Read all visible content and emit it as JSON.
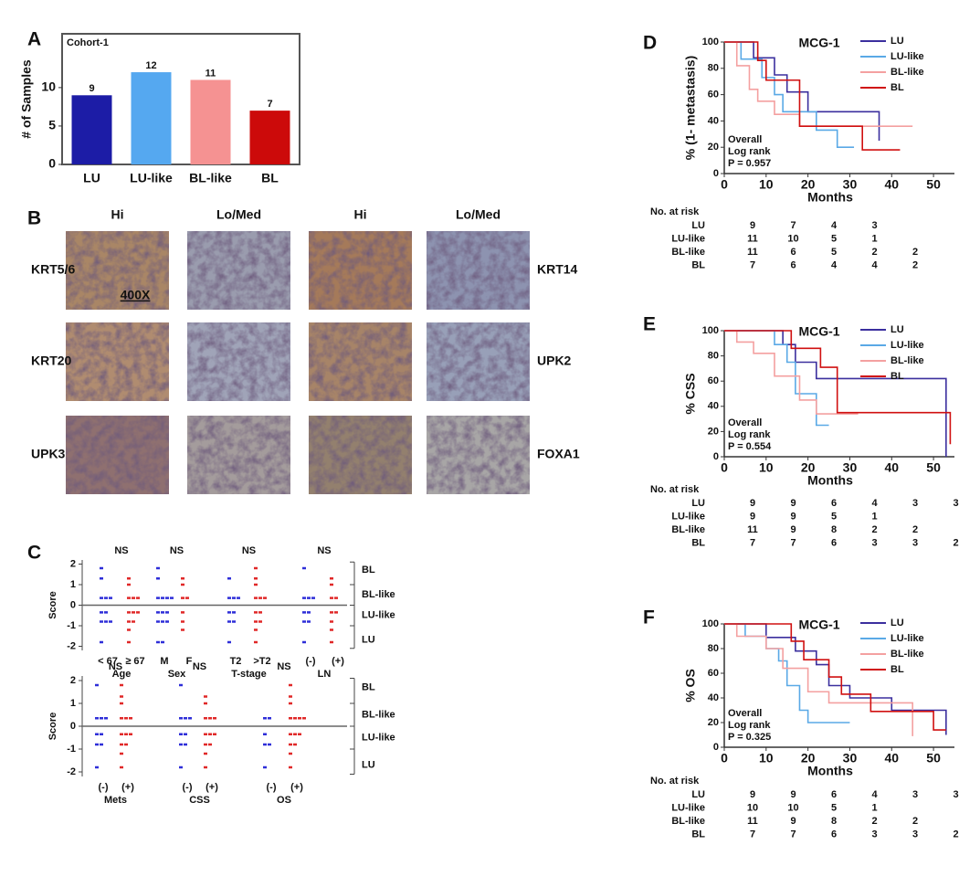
{
  "chart_data": [
    {
      "type": "bar",
      "panel": "A",
      "title": "Cohort-1",
      "ylabel": "# of Samples",
      "categories": [
        "LU",
        "LU-like",
        "BL-like",
        "BL"
      ],
      "values": [
        9,
        12,
        11,
        7
      ],
      "colors": [
        "#1c1ca6",
        "#55a8f0",
        "#f59292",
        "#cc0a0a"
      ],
      "ylim": [
        0,
        17
      ],
      "yticks": [
        0,
        5,
        10
      ]
    },
    {
      "type": "strip",
      "panel": "C",
      "ylabel": "Score",
      "ylim": [
        -2.2,
        2.2
      ],
      "yticks": [
        -2,
        -1,
        0,
        1,
        2
      ],
      "bracket": [
        "BL",
        "BL-like",
        "LU-like",
        "LU"
      ],
      "groups": [
        {
          "name": "Age",
          "annotation": "NS",
          "strips": [
            {
              "label": "< 67",
              "color": "#2e2ed8",
              "values": [
                1.8,
                1.3,
                0.35,
                0.35,
                0.35,
                -0.35,
                -0.35,
                -0.8,
                -0.8,
                -0.8,
                -1.8
              ]
            },
            {
              "label": "≥ 67",
              "color": "#e02828",
              "values": [
                1.3,
                1.0,
                0.35,
                0.35,
                0.35,
                -0.35,
                -0.35,
                -0.35,
                -0.8,
                -0.8,
                -1.2,
                -1.8
              ]
            }
          ]
        },
        {
          "name": "Sex",
          "annotation": "NS",
          "strips": [
            {
              "label": "M",
              "color": "#2e2ed8",
              "values": [
                1.8,
                1.3,
                0.35,
                0.35,
                0.35,
                0.35,
                -0.35,
                -0.35,
                -0.35,
                -0.8,
                -0.8,
                -0.8,
                -1.8,
                -1.8
              ]
            },
            {
              "label": "F",
              "color": "#e02828",
              "values": [
                1.3,
                1.0,
                0.35,
                0.35,
                -0.35,
                -0.8,
                -1.2
              ]
            }
          ]
        },
        {
          "name": "T-stage",
          "annotation": "NS",
          "strips": [
            {
              "label": "T2",
              "color": "#2e2ed8",
              "values": [
                1.3,
                0.35,
                0.35,
                0.35,
                -0.35,
                -0.35,
                -0.8,
                -0.8,
                -1.8
              ]
            },
            {
              "label": ">T2",
              "color": "#e02828",
              "values": [
                1.8,
                1.3,
                1.0,
                0.35,
                0.35,
                0.35,
                -0.35,
                -0.35,
                -0.8,
                -0.8,
                -1.2,
                -1.8
              ]
            }
          ]
        },
        {
          "name": "LN",
          "annotation": "NS",
          "strips": [
            {
              "label": "(-)",
              "color": "#2e2ed8",
              "values": [
                1.8,
                0.35,
                0.35,
                0.35,
                -0.35,
                -0.35,
                -0.8,
                -0.8,
                -1.8
              ]
            },
            {
              "label": "(+)",
              "color": "#e02828",
              "values": [
                1.3,
                1.0,
                0.35,
                0.35,
                -0.35,
                -0.35,
                -0.8,
                -1.2,
                -1.8
              ]
            }
          ]
        }
      ]
    },
    {
      "type": "strip",
      "ylabel": "Score",
      "ylim": [
        -2.2,
        2.2
      ],
      "yticks": [
        -2,
        -1,
        0,
        1,
        2
      ],
      "bracket": [
        "BL",
        "BL-like",
        "LU-like",
        "LU"
      ],
      "groups": [
        {
          "name": "Mets",
          "annotation": "NS",
          "strips": [
            {
              "label": "(-)",
              "color": "#2e2ed8",
              "values": [
                1.8,
                0.35,
                0.35,
                0.35,
                -0.35,
                -0.35,
                -0.8,
                -0.8,
                -1.8
              ]
            },
            {
              "label": "(+)",
              "color": "#e02828",
              "values": [
                1.8,
                1.3,
                1.0,
                0.35,
                0.35,
                0.35,
                -0.35,
                -0.35,
                -0.35,
                -0.8,
                -0.8,
                -1.2,
                -1.8
              ]
            }
          ]
        },
        {
          "name": "CSS",
          "annotation": "NS",
          "strips": [
            {
              "label": "(-)",
              "color": "#2e2ed8",
              "values": [
                1.8,
                0.35,
                0.35,
                0.35,
                -0.35,
                -0.35,
                -0.8,
                -0.8,
                -1.8
              ]
            },
            {
              "label": "(+)",
              "color": "#e02828",
              "values": [
                1.3,
                1.0,
                0.35,
                0.35,
                0.35,
                -0.35,
                -0.35,
                -0.35,
                -0.8,
                -0.8,
                -1.2,
                -1.8
              ]
            }
          ]
        },
        {
          "name": "OS",
          "annotation": "NS",
          "strips": [
            {
              "label": "(-)",
              "color": "#2e2ed8",
              "values": [
                0.35,
                0.35,
                -0.35,
                -0.8,
                -0.8,
                -1.8
              ]
            },
            {
              "label": "(+)",
              "color": "#e02828",
              "values": [
                1.8,
                1.3,
                1.0,
                0.35,
                0.35,
                0.35,
                0.35,
                -0.35,
                -0.35,
                -0.35,
                -0.8,
                -0.8,
                -1.2,
                -1.8
              ]
            }
          ]
        }
      ]
    },
    {
      "type": "km",
      "panel": "D",
      "title": "MCG-1",
      "ylabel": "% (1- metastasis)",
      "xlabel": "Months",
      "annotation": [
        "Overall",
        "Log rank",
        "P = 0.957"
      ],
      "xlim": [
        0,
        55
      ],
      "ylim": [
        0,
        100
      ],
      "xticks": [
        0,
        10,
        20,
        30,
        40,
        50
      ],
      "yticks": [
        0,
        20,
        40,
        60,
        80,
        100
      ],
      "series": [
        {
          "name": "LU",
          "color": "#3b2f9e",
          "x": [
            0,
            7,
            7,
            12,
            12,
            15,
            15,
            20,
            20,
            37,
            37
          ],
          "values": [
            100,
            100,
            88,
            88,
            75,
            75,
            62,
            62,
            47,
            47,
            25
          ]
        },
        {
          "name": "LU-like",
          "color": "#5aa9e6",
          "x": [
            0,
            4,
            4,
            9,
            9,
            12,
            12,
            14,
            14,
            22,
            22,
            27,
            27,
            31
          ],
          "values": [
            100,
            100,
            87,
            87,
            73,
            73,
            60,
            60,
            47,
            47,
            33,
            33,
            20,
            20
          ]
        },
        {
          "name": "BL-like",
          "color": "#f4a0a0",
          "x": [
            0,
            3,
            3,
            6,
            6,
            8,
            8,
            12,
            12,
            18,
            18,
            45
          ],
          "values": [
            100,
            100,
            82,
            82,
            64,
            64,
            55,
            55,
            45,
            45,
            36,
            36
          ]
        },
        {
          "name": "BL",
          "color": "#d01010",
          "x": [
            0,
            8,
            8,
            10,
            10,
            18,
            18,
            33,
            33,
            42
          ],
          "values": [
            100,
            100,
            86,
            86,
            71,
            71,
            36,
            36,
            18,
            18
          ]
        }
      ],
      "risk_table": {
        "title": "No. at risk",
        "rows": [
          {
            "name": "LU",
            "counts": [
              9,
              7,
              4,
              3
            ]
          },
          {
            "name": "LU-like",
            "counts": [
              11,
              10,
              5,
              1
            ]
          },
          {
            "name": "BL-like",
            "counts": [
              11,
              6,
              5,
              2,
              2
            ]
          },
          {
            "name": "BL",
            "counts": [
              7,
              6,
              4,
              4,
              2
            ]
          }
        ]
      }
    },
    {
      "type": "km",
      "panel": "E",
      "title": "MCG-1",
      "ylabel": "% CSS",
      "xlabel": "Months",
      "annotation": [
        "Overall",
        "Log rank",
        "P = 0.554"
      ],
      "xlim": [
        0,
        55
      ],
      "ylim": [
        0,
        100
      ],
      "xticks": [
        0,
        10,
        20,
        30,
        40,
        50
      ],
      "yticks": [
        0,
        20,
        40,
        60,
        80,
        100
      ],
      "series": [
        {
          "name": "LU",
          "color": "#3b2f9e",
          "x": [
            0,
            14,
            14,
            17,
            17,
            22,
            22,
            53,
            53
          ],
          "values": [
            100,
            100,
            89,
            89,
            75,
            75,
            62,
            62,
            0
          ]
        },
        {
          "name": "LU-like",
          "color": "#5aa9e6",
          "x": [
            0,
            12,
            12,
            15,
            15,
            17,
            17,
            22,
            22,
            25
          ],
          "values": [
            100,
            100,
            89,
            89,
            75,
            75,
            50,
            50,
            25,
            25
          ]
        },
        {
          "name": "BL-like",
          "color": "#f4a0a0",
          "x": [
            0,
            3,
            3,
            7,
            7,
            12,
            12,
            18,
            18,
            22,
            22,
            32
          ],
          "values": [
            100,
            100,
            91,
            91,
            82,
            82,
            64,
            64,
            45,
            45,
            34,
            34
          ]
        },
        {
          "name": "BL",
          "color": "#d01010",
          "x": [
            0,
            16,
            16,
            23,
            23,
            27,
            27,
            54,
            54
          ],
          "values": [
            100,
            100,
            86,
            86,
            71,
            71,
            35,
            35,
            10
          ]
        }
      ],
      "risk_table": {
        "title": "No. at risk",
        "rows": [
          {
            "name": "LU",
            "counts": [
              9,
              9,
              6,
              4,
              3,
              3
            ]
          },
          {
            "name": "LU-like",
            "counts": [
              9,
              9,
              5,
              1
            ]
          },
          {
            "name": "BL-like",
            "counts": [
              11,
              9,
              8,
              2,
              2
            ]
          },
          {
            "name": "BL",
            "counts": [
              7,
              7,
              6,
              3,
              3,
              2
            ]
          }
        ]
      }
    },
    {
      "type": "km",
      "panel": "F",
      "title": "MCG-1",
      "ylabel": "% OS",
      "xlabel": "Months",
      "annotation": [
        "Overall",
        "Log rank",
        "P = 0.325"
      ],
      "xlim": [
        0,
        55
      ],
      "ylim": [
        0,
        100
      ],
      "xticks": [
        0,
        10,
        20,
        30,
        40,
        50
      ],
      "yticks": [
        0,
        20,
        40,
        60,
        80,
        100
      ],
      "series": [
        {
          "name": "LU",
          "color": "#3b2f9e",
          "x": [
            0,
            10,
            10,
            17,
            17,
            22,
            22,
            25,
            25,
            30,
            30,
            40,
            40,
            53,
            53
          ],
          "values": [
            100,
            100,
            89,
            89,
            78,
            78,
            67,
            67,
            50,
            50,
            40,
            40,
            30,
            30,
            10
          ]
        },
        {
          "name": "LU-like",
          "color": "#5aa9e6",
          "x": [
            0,
            5,
            5,
            10,
            10,
            13,
            13,
            15,
            15,
            18,
            18,
            20,
            20,
            30
          ],
          "values": [
            100,
            100,
            90,
            90,
            80,
            80,
            70,
            70,
            50,
            50,
            30,
            30,
            20,
            20
          ]
        },
        {
          "name": "BL-like",
          "color": "#f4a0a0",
          "x": [
            0,
            3,
            3,
            10,
            10,
            14,
            14,
            20,
            20,
            25,
            25,
            45,
            45
          ],
          "values": [
            100,
            100,
            90,
            90,
            80,
            80,
            64,
            64,
            45,
            45,
            36,
            36,
            9
          ]
        },
        {
          "name": "BL",
          "color": "#d01010",
          "x": [
            0,
            16,
            16,
            19,
            19,
            25,
            25,
            28,
            28,
            35,
            35,
            50,
            50,
            53
          ],
          "values": [
            100,
            100,
            86,
            86,
            71,
            71,
            57,
            57,
            43,
            43,
            29,
            29,
            14,
            14
          ]
        }
      ],
      "risk_table": {
        "title": "No. at risk",
        "rows": [
          {
            "name": "LU",
            "counts": [
              9,
              9,
              6,
              4,
              3,
              3
            ]
          },
          {
            "name": "LU-like",
            "counts": [
              10,
              10,
              5,
              1
            ]
          },
          {
            "name": "BL-like",
            "counts": [
              11,
              9,
              8,
              2,
              2
            ]
          },
          {
            "name": "BL",
            "counts": [
              7,
              7,
              6,
              3,
              3,
              2
            ]
          }
        ]
      }
    }
  ],
  "ihc": {
    "panel": "B",
    "columns": [
      "Hi",
      "Lo/Med",
      "Hi",
      "Lo/Med"
    ],
    "rows_left": [
      "KRT5/6",
      "KRT20",
      "UPK3"
    ],
    "rows_right": [
      "KRT14",
      "UPK2",
      "FOXA1"
    ],
    "magnification": "400X"
  }
}
